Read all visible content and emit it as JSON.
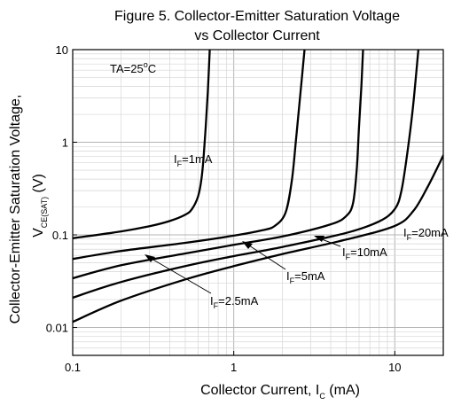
{
  "chart_data": {
    "type": "line",
    "title_line1": "Figure 5. Collector-Emitter Saturation Voltage",
    "title_line2": "vs Collector Current",
    "xlabel": {
      "main": "Collector Current, I",
      "sub": "C",
      "unit": " (mA)"
    },
    "ylabel": {
      "main": "Collector-Emitter Saturation Voltage,",
      "sym": "V",
      "sub": "CE(SAT)",
      "unit": " (V)"
    },
    "x_scale": "log",
    "y_scale": "log",
    "xlim": [
      0.1,
      20
    ],
    "ylim": [
      0.005,
      10
    ],
    "x_ticks": [
      {
        "value": 0.1,
        "label": "0.1"
      },
      {
        "value": 1,
        "label": "1"
      },
      {
        "value": 10,
        "label": "10"
      }
    ],
    "y_ticks": [
      {
        "value": 0.01,
        "label": "0.01"
      },
      {
        "value": 0.1,
        "label": "0.1"
      },
      {
        "value": 1,
        "label": "1"
      },
      {
        "value": 10,
        "label": "10"
      }
    ],
    "grid": true,
    "condition": {
      "text": "TA=25",
      "deg": "o",
      "unit": "C"
    },
    "series": [
      {
        "label_main": "I",
        "label_sub": "F",
        "label_val": "=1mA",
        "points": [
          [
            0.1,
            0.092
          ],
          [
            0.2,
            0.109
          ],
          [
            0.3,
            0.124
          ],
          [
            0.4,
            0.141
          ],
          [
            0.5,
            0.165
          ],
          [
            0.55,
            0.19
          ],
          [
            0.6,
            0.26
          ],
          [
            0.63,
            0.4
          ],
          [
            0.65,
            0.7
          ],
          [
            0.67,
            1.5
          ],
          [
            0.69,
            3.5
          ],
          [
            0.71,
            10
          ]
        ]
      },
      {
        "label_main": "I",
        "label_sub": "F",
        "label_val": "=2.5mA",
        "points": [
          [
            0.1,
            0.055
          ],
          [
            0.2,
            0.067
          ],
          [
            0.5,
            0.082
          ],
          [
            1,
            0.098
          ],
          [
            1.5,
            0.112
          ],
          [
            1.8,
            0.125
          ],
          [
            2.1,
            0.175
          ],
          [
            2.3,
            0.4
          ],
          [
            2.45,
            1.2
          ],
          [
            2.6,
            3.5
          ],
          [
            2.75,
            10
          ]
        ]
      },
      {
        "label_main": "I",
        "label_sub": "F",
        "label_val": "=5mA",
        "points": [
          [
            0.1,
            0.034
          ],
          [
            0.2,
            0.047
          ],
          [
            0.5,
            0.063
          ],
          [
            1,
            0.078
          ],
          [
            2,
            0.096
          ],
          [
            4,
            0.13
          ],
          [
            5,
            0.16
          ],
          [
            5.5,
            0.22
          ],
          [
            5.8,
            0.5
          ],
          [
            6,
            1.5
          ],
          [
            6.2,
            4
          ],
          [
            6.35,
            10
          ]
        ]
      },
      {
        "label_main": "I",
        "label_sub": "F",
        "label_val": "=10mA",
        "points": [
          [
            0.1,
            0.021
          ],
          [
            0.2,
            0.031
          ],
          [
            0.5,
            0.046
          ],
          [
            1,
            0.059
          ],
          [
            2,
            0.074
          ],
          [
            5,
            0.105
          ],
          [
            8,
            0.14
          ],
          [
            10,
            0.19
          ],
          [
            11,
            0.3
          ],
          [
            12,
            0.8
          ],
          [
            13,
            2.5
          ],
          [
            14,
            10
          ]
        ]
      },
      {
        "label_main": "I",
        "label_sub": "F",
        "label_val": "=20mA",
        "points": [
          [
            0.1,
            0.0115
          ],
          [
            0.2,
            0.0195
          ],
          [
            0.5,
            0.033
          ],
          [
            1,
            0.046
          ],
          [
            2,
            0.062
          ],
          [
            5,
            0.089
          ],
          [
            10,
            0.125
          ],
          [
            13,
            0.18
          ],
          [
            16,
            0.33
          ],
          [
            20,
            0.72
          ]
        ]
      }
    ]
  }
}
